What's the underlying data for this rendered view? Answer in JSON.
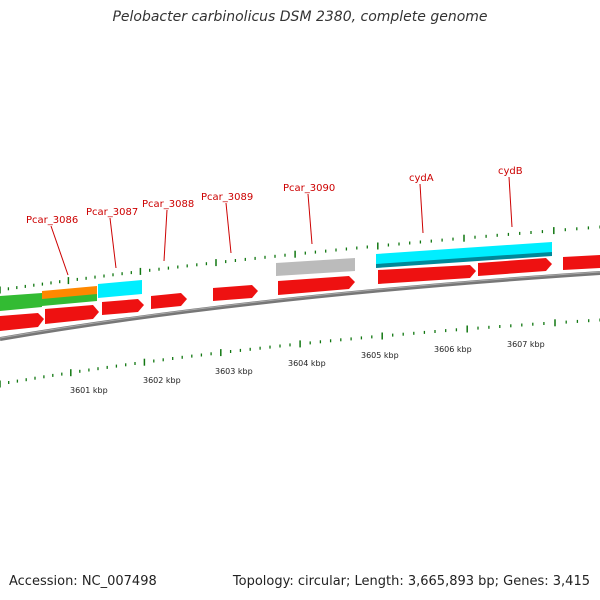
{
  "title": "Pelobacter carbinolicus DSM 2380, complete genome",
  "footer": {
    "accession": "Accession: NC_007498",
    "info": "Topology: circular; Length: 3,665,893 bp; Genes: 3,415"
  },
  "colors": {
    "cds_red": "#ee1111",
    "rna_cyan": "#00eeff",
    "green": "#33bb33",
    "orange": "#ff8800",
    "grey": "#bbbbbb",
    "tick_green": "#117711",
    "label_red": "#cc0000"
  },
  "gene_labels": [
    "Pcar_3086",
    "Pcar_3087",
    "Pcar_3088",
    "Pcar_3089",
    "Pcar_3090",
    "cydA",
    "cydB"
  ],
  "kbp_labels": [
    "3601 kbp",
    "3602 kbp",
    "3603 kbp",
    "3604 kbp",
    "3605 kbp",
    "3606 kbp",
    "3607 kbp"
  ]
}
